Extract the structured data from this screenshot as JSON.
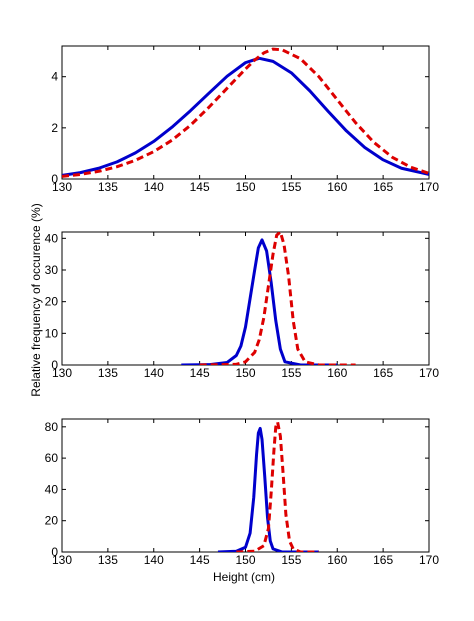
{
  "chart_data": [
    {
      "type": "line",
      "xlim": [
        130,
        170
      ],
      "ylim": [
        0,
        5.2
      ],
      "xticks": [
        130,
        135,
        140,
        145,
        150,
        155,
        160,
        165,
        170
      ],
      "yticks": [
        0,
        2,
        4
      ],
      "grid": false,
      "series": [
        {
          "color": "#0000cc",
          "style": "solid",
          "x": [
            130,
            132,
            134,
            136,
            138,
            140,
            142,
            144,
            146,
            148,
            150,
            151.5,
            153,
            155,
            157,
            159,
            161,
            163,
            165,
            167,
            170
          ],
          "y": [
            0.14,
            0.25,
            0.42,
            0.67,
            1.02,
            1.47,
            2.03,
            2.67,
            3.35,
            4.02,
            4.55,
            4.72,
            4.6,
            4.15,
            3.45,
            2.65,
            1.88,
            1.23,
            0.75,
            0.42,
            0.18
          ]
        },
        {
          "color": "#dd0000",
          "style": "dashed",
          "x": [
            130,
            132,
            134,
            136,
            138,
            140,
            142,
            144,
            146,
            148,
            150,
            151,
            152,
            153,
            154,
            156,
            158,
            160,
            162,
            164,
            166,
            168,
            170
          ],
          "y": [
            0.1,
            0.18,
            0.3,
            0.48,
            0.73,
            1.07,
            1.52,
            2.1,
            2.8,
            3.55,
            4.3,
            4.65,
            4.93,
            5.08,
            5.05,
            4.7,
            4.0,
            3.1,
            2.2,
            1.43,
            0.85,
            0.46,
            0.22
          ]
        }
      ]
    },
    {
      "type": "line",
      "xlim": [
        130,
        170
      ],
      "ylim": [
        0,
        42
      ],
      "xticks": [
        130,
        135,
        140,
        145,
        150,
        155,
        160,
        165,
        170
      ],
      "yticks": [
        0,
        10,
        20,
        30,
        40
      ],
      "ylabel": "Relative frequency of occurence (%)",
      "grid": false,
      "series": [
        {
          "color": "#0000cc",
          "style": "solid",
          "x": [
            143,
            146,
            148,
            149,
            149.5,
            150,
            150.5,
            151,
            151.4,
            151.8,
            152.3,
            152.8,
            153.3,
            153.8,
            154.3,
            156,
            160
          ],
          "y": [
            0,
            0.1,
            0.8,
            3,
            6,
            12,
            21,
            30,
            37,
            39.5,
            36,
            26,
            14,
            5,
            1,
            0,
            0
          ]
        },
        {
          "color": "#dd0000",
          "style": "dashed",
          "x": [
            145,
            149,
            150,
            151,
            151.5,
            152,
            152.5,
            153,
            153.4,
            153.8,
            154.2,
            154.7,
            155.2,
            155.7,
            156.5,
            158,
            162
          ],
          "y": [
            0,
            0.2,
            1,
            4,
            8,
            15,
            25,
            35,
            41,
            42,
            38,
            28,
            14,
            5,
            1,
            0,
            0
          ]
        }
      ]
    },
    {
      "type": "line",
      "xlim": [
        130,
        170
      ],
      "ylim": [
        0,
        85
      ],
      "xticks": [
        130,
        135,
        140,
        145,
        150,
        155,
        160,
        165,
        170
      ],
      "yticks": [
        0,
        20,
        40,
        60,
        80
      ],
      "xlabel": "Height (cm)",
      "grid": false,
      "series": [
        {
          "color": "#0000cc",
          "style": "solid",
          "x": [
            147,
            149,
            150,
            150.5,
            150.9,
            151.2,
            151.4,
            151.6,
            151.8,
            152.1,
            152.4,
            152.7,
            153,
            154,
            158
          ],
          "y": [
            0,
            0.5,
            3,
            12,
            35,
            62,
            76,
            79,
            72,
            48,
            22,
            7,
            2,
            0,
            0
          ]
        },
        {
          "color": "#dd0000",
          "style": "dashed",
          "x": [
            149,
            151,
            152,
            152.5,
            152.8,
            153.1,
            153.3,
            153.5,
            153.8,
            154.1,
            154.4,
            154.8,
            155.2,
            156,
            158
          ],
          "y": [
            0,
            0.5,
            4,
            15,
            38,
            65,
            80,
            83,
            74,
            50,
            24,
            7,
            2,
            0,
            0
          ]
        }
      ]
    }
  ]
}
